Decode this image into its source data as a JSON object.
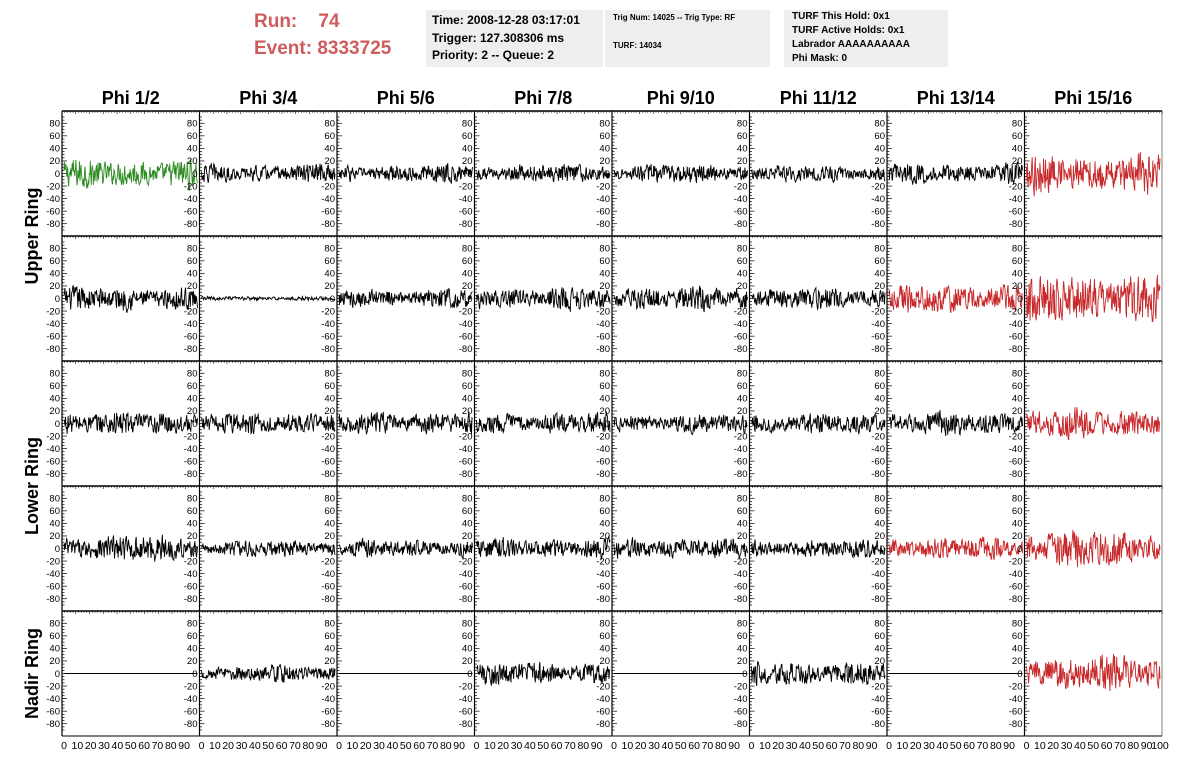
{
  "header": {
    "run_label": "Run:",
    "run_value": "74",
    "event_label": "Event:",
    "event_value": "8333725",
    "time": "Time: 2008-12-28 03:17:01",
    "trigger": "Trigger: 127.308306 ms",
    "priority": "Priority: 2 -- Queue: 2",
    "trig_num": "Trig Num: 14025 -- Trig Type: RF",
    "turf": "TURF: 14034",
    "turf_this_hold": "TURF This Hold: 0x1",
    "turf_active_holds": "TURF Active Holds: 0x1",
    "labrador": "Labrador AAAAAAAAAA",
    "phi_mask": "Phi Mask: 0"
  },
  "chart_data": {
    "type": "line",
    "title": "",
    "columns": [
      "Phi 1/2",
      "Phi 3/4",
      "Phi 5/6",
      "Phi 7/8",
      "Phi 9/10",
      "Phi 11/12",
      "Phi 13/14",
      "Phi 15/16"
    ],
    "row_groups": [
      {
        "label": "Upper Ring",
        "rows": [
          0,
          1
        ]
      },
      {
        "label": "Lower Ring",
        "rows": [
          2,
          3
        ]
      },
      {
        "label": "Nadir Ring",
        "rows": [
          4
        ]
      }
    ],
    "ylim": [
      -90,
      90
    ],
    "yticks": [
      -80,
      -60,
      -40,
      -20,
      0,
      20,
      40,
      60,
      80
    ],
    "xlim": [
      0,
      100
    ],
    "xticks": [
      0,
      10,
      20,
      30,
      40,
      50,
      60,
      70,
      80,
      90,
      100
    ],
    "colors": {
      "default": "#000000",
      "green": "#2e8b22",
      "red": "#c8282a"
    },
    "panels": [
      [
        {
          "color": "green",
          "amp": 14
        },
        {
          "color": "default",
          "amp": 9
        },
        {
          "color": "default",
          "amp": 9
        },
        {
          "color": "default",
          "amp": 9
        },
        {
          "color": "default",
          "amp": 9
        },
        {
          "color": "default",
          "amp": 8
        },
        {
          "color": "default",
          "amp": 10
        },
        {
          "color": "red",
          "amp": 19
        }
      ],
      [
        {
          "color": "default",
          "amp": 12
        },
        {
          "color": "default",
          "amp": 2
        },
        {
          "color": "default",
          "amp": 10
        },
        {
          "color": "default",
          "amp": 11
        },
        {
          "color": "default",
          "amp": 12
        },
        {
          "color": "default",
          "amp": 10
        },
        {
          "color": "red",
          "amp": 14
        },
        {
          "color": "red",
          "amp": 24
        }
      ],
      [
        {
          "color": "default",
          "amp": 12
        },
        {
          "color": "default",
          "amp": 11
        },
        {
          "color": "default",
          "amp": 11
        },
        {
          "color": "default",
          "amp": 10
        },
        {
          "color": "default",
          "amp": 9
        },
        {
          "color": "default",
          "amp": 10
        },
        {
          "color": "default",
          "amp": 11
        },
        {
          "color": "red",
          "amp": 14
        }
      ],
      [
        {
          "color": "default",
          "amp": 13
        },
        {
          "color": "default",
          "amp": 8
        },
        {
          "color": "default",
          "amp": 9
        },
        {
          "color": "default",
          "amp": 10
        },
        {
          "color": "default",
          "amp": 10
        },
        {
          "color": "default",
          "amp": 9
        },
        {
          "color": "red",
          "amp": 11
        },
        {
          "color": "red",
          "amp": 18
        }
      ],
      [
        {
          "color": "default",
          "amp": 0
        },
        {
          "color": "default",
          "amp": 8
        },
        {
          "color": "default",
          "amp": 0
        },
        {
          "color": "default",
          "amp": 11
        },
        {
          "color": "default",
          "amp": 0
        },
        {
          "color": "default",
          "amp": 12
        },
        {
          "color": "default",
          "amp": 0
        },
        {
          "color": "red",
          "amp": 18
        }
      ]
    ]
  }
}
